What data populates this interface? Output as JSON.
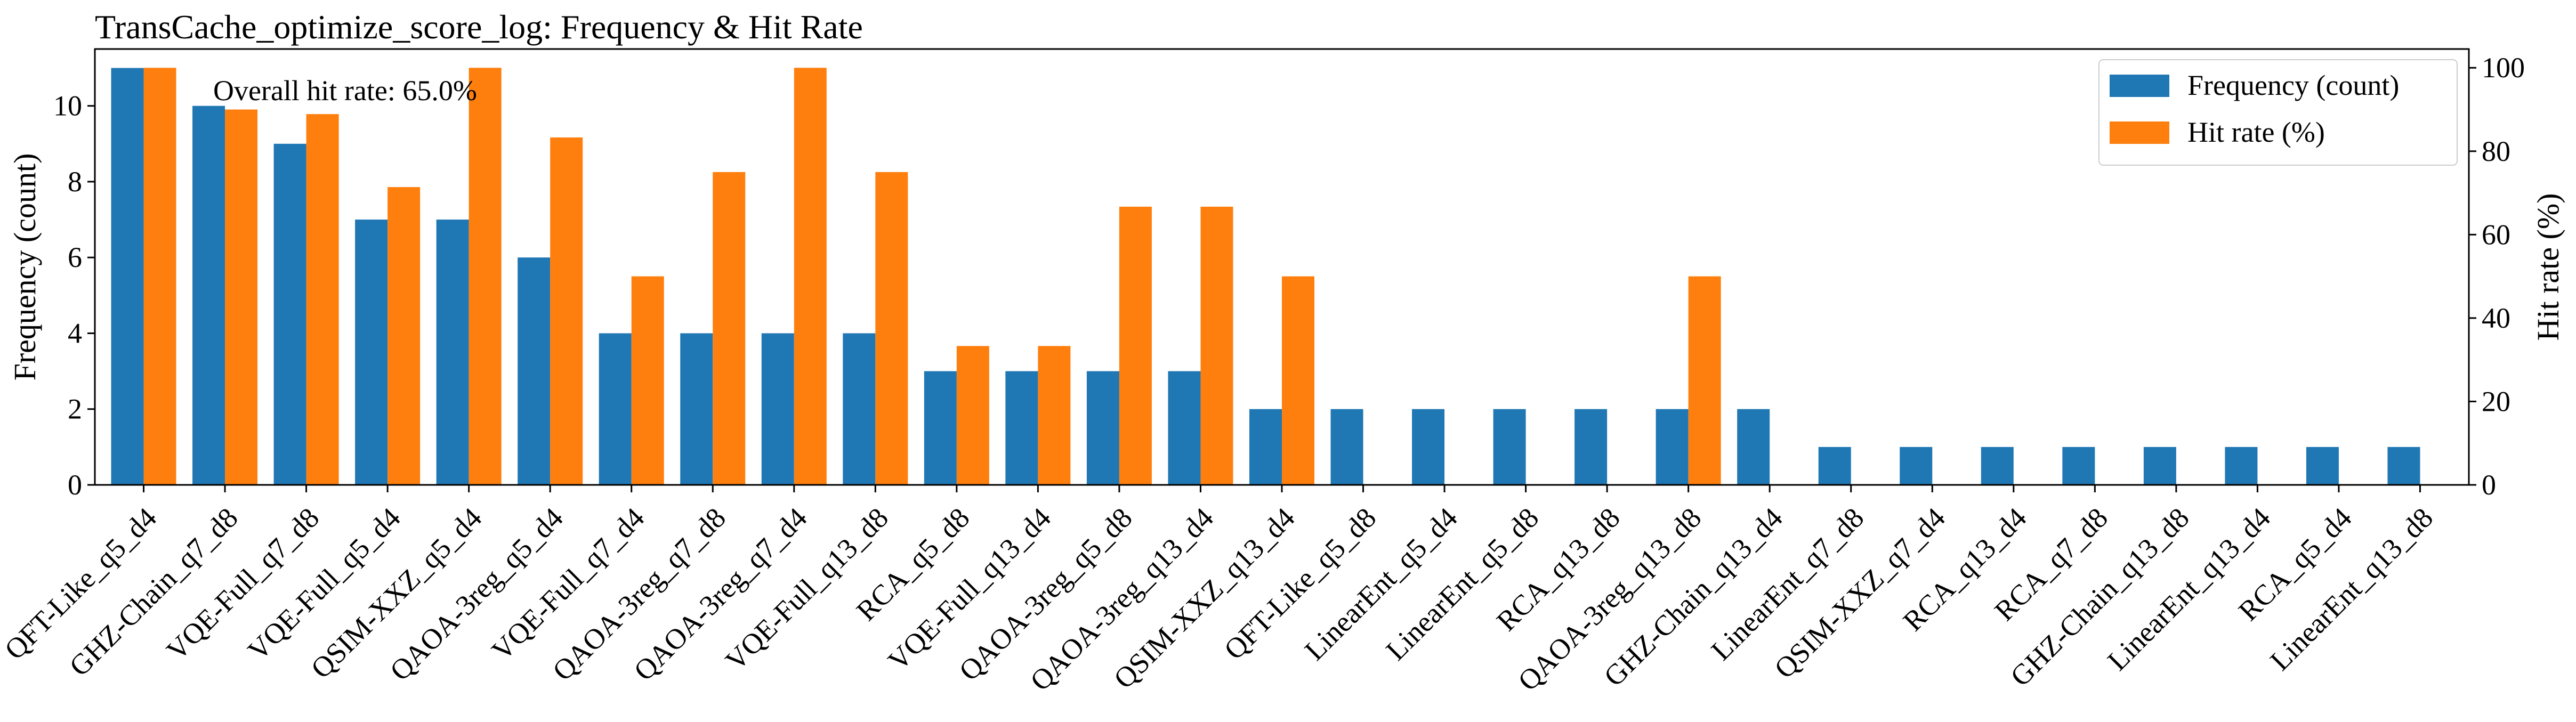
{
  "chart_data": {
    "type": "bar",
    "title": "TransCache_optimize_score_log: Frequency & Hit Rate",
    "annotation": "Overall hit rate: 65.0%",
    "xlabel": "",
    "ylabel": "Frequency (count)",
    "y2label": "Hit rate (%)",
    "ylim": [
      0,
      11.5
    ],
    "y2lim": [
      0,
      104.5
    ],
    "yticks": [
      0,
      2,
      4,
      6,
      8,
      10
    ],
    "y2ticks": [
      0,
      20,
      40,
      60,
      80,
      100
    ],
    "legend": "top-right",
    "grid": false,
    "categories": [
      "QFT-Like_q5_d4",
      "GHZ-Chain_q7_d8",
      "VQE-Full_q7_d8",
      "VQE-Full_q5_d4",
      "QSIM-XXZ_q5_d4",
      "QAOA-3reg_q5_d4",
      "VQE-Full_q7_d4",
      "QAOA-3reg_q7_d8",
      "QAOA-3reg_q7_d4",
      "VQE-Full_q13_d8",
      "RCA_q5_d8",
      "VQE-Full_q13_d4",
      "QAOA-3reg_q5_d8",
      "QAOA-3reg_q13_d4",
      "QSIM-XXZ_q13_d4",
      "QFT-Like_q5_d8",
      "LinearEnt_q5_d4",
      "LinearEnt_q5_d8",
      "RCA_q13_d8",
      "QAOA-3reg_q13_d8",
      "GHZ-Chain_q13_d4",
      "LinearEnt_q7_d8",
      "QSIM-XXZ_q7_d4",
      "RCA_q13_d4",
      "RCA_q7_d8",
      "GHZ-Chain_q13_d8",
      "LinearEnt_q13_d4",
      "RCA_q5_d4",
      "LinearEnt_q13_d8"
    ],
    "series": [
      {
        "name": "Frequency (count)",
        "axis": "left",
        "color": "#1f77b4",
        "values": [
          11,
          10,
          9,
          7,
          7,
          6,
          4,
          4,
          4,
          4,
          3,
          3,
          3,
          3,
          2,
          2,
          2,
          2,
          2,
          2,
          2,
          1,
          1,
          1,
          1,
          1,
          1,
          1,
          1
        ]
      },
      {
        "name": "Hit rate (%)",
        "axis": "right",
        "color": "#ff7f0e",
        "values": [
          100,
          90,
          88.9,
          71.4,
          100,
          83.3,
          50,
          75,
          100,
          75,
          33.3,
          33.3,
          66.7,
          66.7,
          50,
          0,
          0,
          0,
          0,
          50,
          0,
          0,
          0,
          0,
          0,
          0,
          0,
          0,
          0
        ]
      }
    ]
  }
}
